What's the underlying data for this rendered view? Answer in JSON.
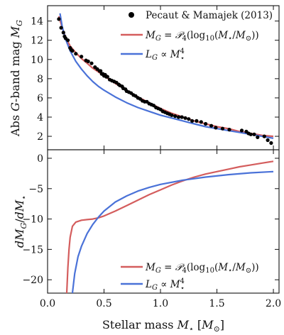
{
  "chart_data": [
    {
      "panel": "top",
      "type": "line",
      "xlim": [
        0,
        2.05
      ],
      "ylim": [
        0.6,
        15.6
      ],
      "yticks": [
        2,
        4,
        6,
        8,
        10,
        12,
        14
      ],
      "ylabel": "Abs G-band mag M_G",
      "legend_position": "top-right",
      "series": [
        {
          "name": "Pecaut & Mamajek (2013)",
          "kind": "scatter",
          "color": "#000000",
          "x": [
            0.1,
            0.12,
            0.14,
            0.15,
            0.16,
            0.18,
            0.2,
            0.21,
            0.22,
            0.25,
            0.3,
            0.34,
            0.36,
            0.39,
            0.42,
            0.44,
            0.46,
            0.47,
            0.48,
            0.49,
            0.5,
            0.51,
            0.52,
            0.53,
            0.55,
            0.57,
            0.59,
            0.61,
            0.63,
            0.64,
            0.66,
            0.67,
            0.69,
            0.7,
            0.72,
            0.74,
            0.76,
            0.78,
            0.8,
            0.82,
            0.84,
            0.86,
            0.88,
            0.9,
            0.92,
            0.94,
            0.96,
            0.98,
            1.0,
            1.02,
            1.04,
            1.06,
            1.08,
            1.1,
            1.13,
            1.16,
            1.19,
            1.22,
            1.25,
            1.28,
            1.32,
            1.36,
            1.4,
            1.45,
            1.49,
            1.55,
            1.61,
            1.72,
            1.76,
            1.78,
            1.8,
            1.83,
            1.86,
            1.92,
            1.95,
            1.98
          ],
          "y": [
            14.2,
            13.3,
            12.8,
            12.4,
            12.2,
            12.0,
            11.2,
            11.0,
            10.9,
            10.6,
            10.3,
            9.9,
            9.8,
            9.6,
            9.2,
            9.0,
            8.8,
            8.8,
            8.5,
            8.5,
            8.3,
            8.4,
            8.2,
            8.2,
            7.9,
            7.8,
            7.7,
            7.6,
            7.4,
            7.3,
            7.2,
            7.0,
            6.9,
            6.7,
            6.6,
            6.5,
            6.3,
            6.2,
            6.0,
            5.9,
            5.7,
            5.6,
            5.6,
            5.4,
            5.3,
            5.2,
            5.0,
            4.9,
            4.8,
            4.6,
            4.5,
            4.4,
            4.3,
            4.2,
            4.1,
            4.0,
            4.0,
            3.9,
            3.8,
            3.6,
            3.6,
            3.5,
            3.3,
            3.1,
            2.9,
            2.8,
            2.7,
            2.6,
            2.5,
            2.3,
            2.2,
            2.2,
            1.9,
            2.0,
            1.6,
            1.3
          ]
        },
        {
          "name": "M_G = P_4(log10(M_star/M_sun))",
          "kind": "line",
          "color": "#d45d5d",
          "x": [
            0.1,
            0.13,
            0.16,
            0.2,
            0.25,
            0.3,
            0.35,
            0.4,
            0.45,
            0.5,
            0.55,
            0.6,
            0.7,
            0.8,
            0.9,
            1.0,
            1.1,
            1.2,
            1.3,
            1.4,
            1.5,
            1.6,
            1.7,
            1.8,
            1.9,
            2.0
          ],
          "y": [
            14.5,
            13.3,
            12.3,
            11.4,
            10.7,
            10.1,
            9.6,
            9.1,
            8.7,
            8.3,
            7.9,
            7.5,
            6.8,
            6.1,
            5.5,
            4.9,
            4.4,
            4.0,
            3.6,
            3.3,
            3.0,
            2.8,
            2.5,
            2.3,
            2.1,
            2.0
          ]
        },
        {
          "name": "L_G ∝ M_star^4",
          "kind": "line",
          "color": "#4a72d8",
          "x": [
            0.11,
            0.13,
            0.16,
            0.2,
            0.25,
            0.3,
            0.35,
            0.4,
            0.45,
            0.5,
            0.6,
            0.7,
            0.8,
            0.9,
            1.0,
            1.1,
            1.2,
            1.3,
            1.4,
            1.5,
            1.6,
            1.7,
            1.8,
            1.9,
            2.0
          ],
          "y": [
            14.8,
            13.4,
            12.1,
            10.9,
            9.8,
            9.0,
            8.3,
            7.7,
            7.2,
            6.8,
            6.1,
            5.5,
            5.0,
            4.6,
            4.2,
            3.9,
            3.6,
            3.3,
            3.0,
            2.8,
            2.6,
            2.4,
            2.2,
            2.0,
            1.8
          ]
        }
      ]
    },
    {
      "panel": "bottom",
      "type": "line",
      "xlim": [
        0,
        2.05
      ],
      "ylim": [
        -22.2,
        1.4
      ],
      "xticks": [
        "0.0",
        "0.5",
        "1.0",
        "1.5",
        "2.0"
      ],
      "yticks": [
        "0",
        "−5",
        "−10",
        "−15",
        "−20"
      ],
      "ytick_values": [
        0,
        -5,
        -10,
        -15,
        -20
      ],
      "xlabel": "Stellar mass M⋆ [M⊙]",
      "ylabel": "dM_G / dM⋆",
      "legend_position": "bottom-right",
      "series": [
        {
          "name": "M_G = P_4(log10(M_star/M_sun))",
          "color": "#d45d5d",
          "x": [
            0.17,
            0.18,
            0.19,
            0.2,
            0.22,
            0.25,
            0.3,
            0.35,
            0.4,
            0.45,
            0.5,
            0.6,
            0.7,
            0.8,
            0.9,
            1.0,
            1.1,
            1.2,
            1.3,
            1.4,
            1.5,
            1.6,
            1.7,
            1.8,
            1.9,
            2.0
          ],
          "y": [
            -22.2,
            -18.0,
            -15.0,
            -13.0,
            -11.2,
            -10.5,
            -10.2,
            -10.1,
            -10.0,
            -9.8,
            -9.5,
            -8.7,
            -7.8,
            -6.9,
            -6.0,
            -5.2,
            -4.4,
            -3.7,
            -3.1,
            -2.6,
            -2.2,
            -1.8,
            -1.4,
            -1.1,
            -0.8,
            -0.5
          ]
        },
        {
          "name": "L_G ∝ M_star^4",
          "color": "#4a72d8",
          "x": [
            0.22,
            0.24,
            0.27,
            0.3,
            0.35,
            0.4,
            0.45,
            0.5,
            0.6,
            0.7,
            0.8,
            0.9,
            1.0,
            1.2,
            1.4,
            1.6,
            1.8,
            2.0
          ],
          "y": [
            -22.2,
            -19.0,
            -16.2,
            -14.5,
            -12.4,
            -10.9,
            -9.7,
            -8.7,
            -7.2,
            -6.2,
            -5.4,
            -4.8,
            -4.3,
            -3.6,
            -3.1,
            -2.7,
            -2.4,
            -2.2
          ]
        }
      ]
    }
  ]
}
